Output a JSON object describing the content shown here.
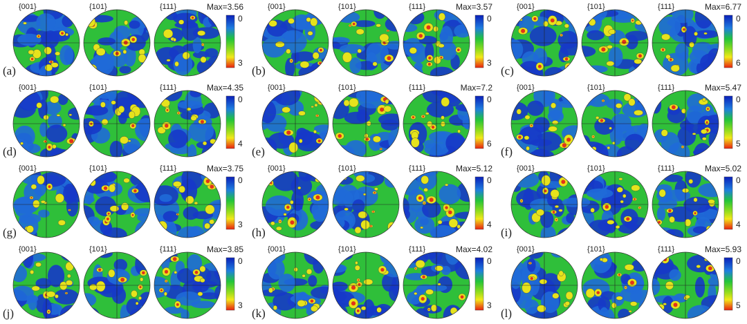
{
  "panels": [
    {
      "label": "(a)",
      "poles": [
        "{001}",
        "{101}",
        "{111}"
      ],
      "max": "Max=3.56",
      "bar_ticks": [
        "0",
        "3"
      ]
    },
    {
      "label": "(b)",
      "poles": [
        "{001}",
        "{101}",
        "{111}"
      ],
      "max": "Max=3.57",
      "bar_ticks": [
        "0",
        "3"
      ]
    },
    {
      "label": "(c)",
      "poles": [
        "{001}",
        "{101}",
        "{111}"
      ],
      "max": "Max=6.77",
      "bar_ticks": [
        "0",
        "6"
      ]
    },
    {
      "label": "(d)",
      "poles": [
        "{001}",
        "{101}",
        "{111}"
      ],
      "max": "Max=4.35",
      "bar_ticks": [
        "0",
        "4"
      ]
    },
    {
      "label": "(e)",
      "poles": [
        "{001}",
        "{101}",
        "{111}"
      ],
      "max": "Max=7.2",
      "bar_ticks": [
        "0",
        "6"
      ]
    },
    {
      "label": "(f)",
      "poles": [
        "{001}",
        "{101}",
        "{111}"
      ],
      "max": "Max=5.47",
      "bar_ticks": [
        "0",
        "5"
      ]
    },
    {
      "label": "(g)",
      "poles": [
        "{001}",
        "{101}",
        "{111}"
      ],
      "max": "Max=3.75",
      "bar_ticks": [
        "0",
        "3"
      ]
    },
    {
      "label": "(h)",
      "poles": [
        "{001}",
        "{101}",
        "{111}"
      ],
      "max": "Max=5.12",
      "bar_ticks": [
        "0",
        "4"
      ]
    },
    {
      "label": "(i)",
      "poles": [
        "{001}",
        "{101}",
        "{111}"
      ],
      "max": "Max=5.02",
      "bar_ticks": [
        "0",
        "4"
      ]
    },
    {
      "label": "(j)",
      "poles": [
        "{001}",
        "{101}",
        "{111}"
      ],
      "max": "Max=3.85",
      "bar_ticks": [
        "0",
        "3"
      ]
    },
    {
      "label": "(k)",
      "poles": [
        "{001}",
        "{101}",
        "{111}"
      ],
      "max": "Max=4.02",
      "bar_ticks": [
        "0",
        "3"
      ]
    },
    {
      "label": "(l)",
      "poles": [
        "{001}",
        "{101}",
        "{111}"
      ],
      "max": "Max=5.93",
      "bar_ticks": [
        "0",
        "5"
      ]
    }
  ]
}
